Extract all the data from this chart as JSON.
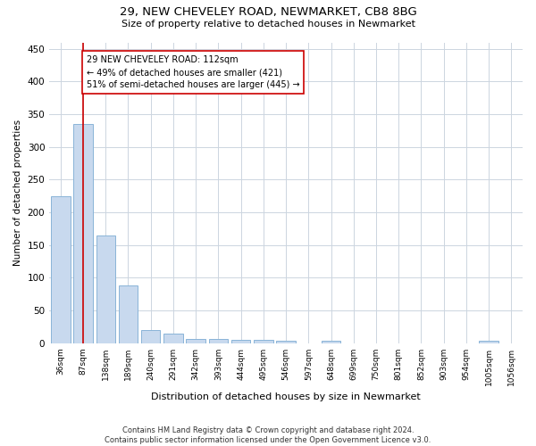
{
  "title1": "29, NEW CHEVELEY ROAD, NEWMARKET, CB8 8BG",
  "title2": "Size of property relative to detached houses in Newmarket",
  "xlabel": "Distribution of detached houses by size in Newmarket",
  "ylabel": "Number of detached properties",
  "categories": [
    "36sqm",
    "87sqm",
    "138sqm",
    "189sqm",
    "240sqm",
    "291sqm",
    "342sqm",
    "393sqm",
    "444sqm",
    "495sqm",
    "546sqm",
    "597sqm",
    "648sqm",
    "699sqm",
    "750sqm",
    "801sqm",
    "852sqm",
    "903sqm",
    "954sqm",
    "1005sqm",
    "1056sqm"
  ],
  "values": [
    225,
    335,
    165,
    88,
    20,
    14,
    6,
    6,
    5,
    5,
    4,
    0,
    3,
    0,
    0,
    0,
    0,
    0,
    0,
    4,
    0
  ],
  "bar_color": "#c8d9ee",
  "bar_edge_color": "#8ab4d8",
  "vline_x": 1,
  "vline_color": "#cc0000",
  "annotation_text": "29 NEW CHEVELEY ROAD: 112sqm\n← 49% of detached houses are smaller (421)\n51% of semi-detached houses are larger (445) →",
  "annotation_box_color": "#ffffff",
  "annotation_box_edgecolor": "#cc0000",
  "ylim": [
    0,
    460
  ],
  "yticks": [
    0,
    50,
    100,
    150,
    200,
    250,
    300,
    350,
    400,
    450
  ],
  "footer": "Contains HM Land Registry data © Crown copyright and database right 2024.\nContains public sector information licensed under the Open Government Licence v3.0.",
  "bg_color": "#ffffff",
  "grid_color": "#ccd5e0"
}
